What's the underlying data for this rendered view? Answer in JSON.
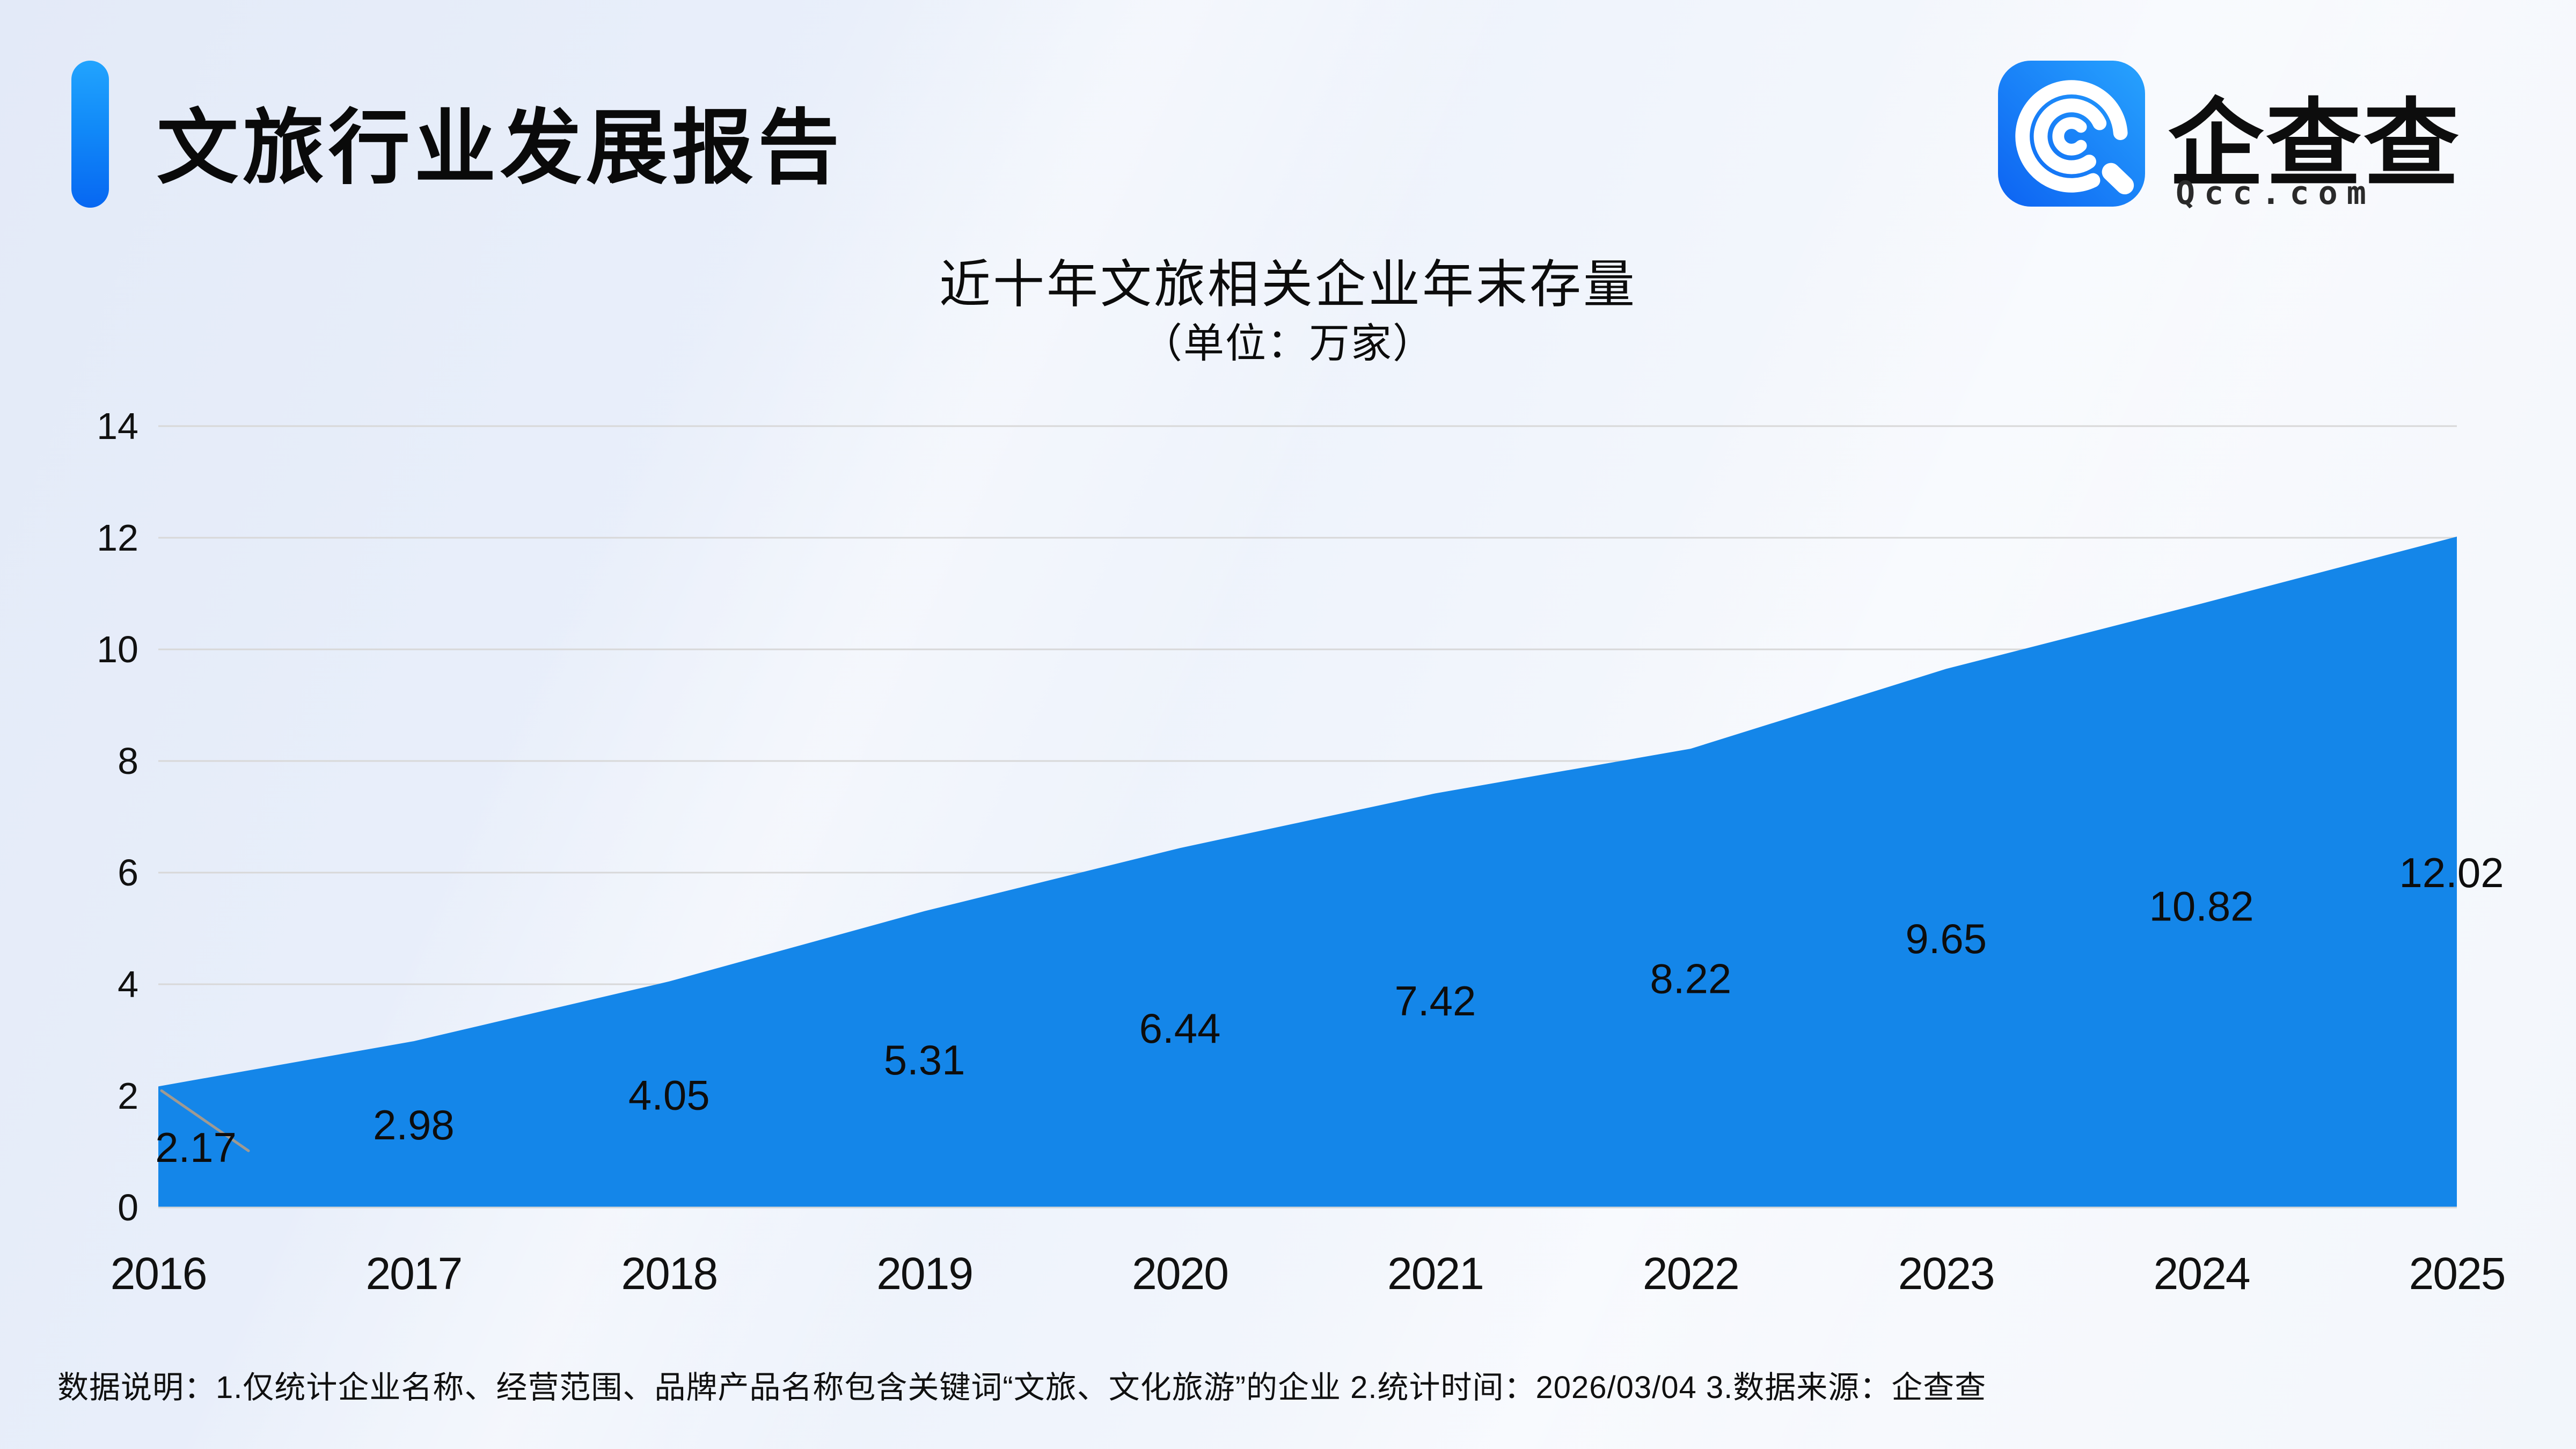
{
  "header": {
    "title": "文旅行业发展报告"
  },
  "logo": {
    "name": "企查查",
    "domain": "Qcc.com",
    "icon": "qcc-spiral-q-icon",
    "icon_colors": {
      "top_right": "#27a3fe",
      "bottom_left": "#0d63f2"
    }
  },
  "chart_data": {
    "type": "area",
    "title": "近十年文旅相关企业年末存量",
    "unit_label": "（单位：万家）",
    "categories": [
      "2016",
      "2017",
      "2018",
      "2019",
      "2020",
      "2021",
      "2022",
      "2023",
      "2024",
      "2025"
    ],
    "values": [
      2.17,
      2.98,
      4.05,
      5.31,
      6.44,
      7.42,
      8.22,
      9.65,
      10.82,
      12.02
    ],
    "ylim": [
      0,
      14
    ],
    "ytick_step": 2,
    "grid": true,
    "legend": "none",
    "area_color": "#1486e9",
    "grid_color": "#d8d8d8",
    "axis_label_color": "#111111",
    "data_label_color": "#0d0d0d",
    "leader_line_color": "#a09a92"
  },
  "footer": {
    "note": "数据说明：1.仅统计企业名称、经营范围、品牌产品名称包含关键词“文旅、文化旅游”的企业  2.统计时间：2026/03/04  3.数据来源：企查查"
  }
}
